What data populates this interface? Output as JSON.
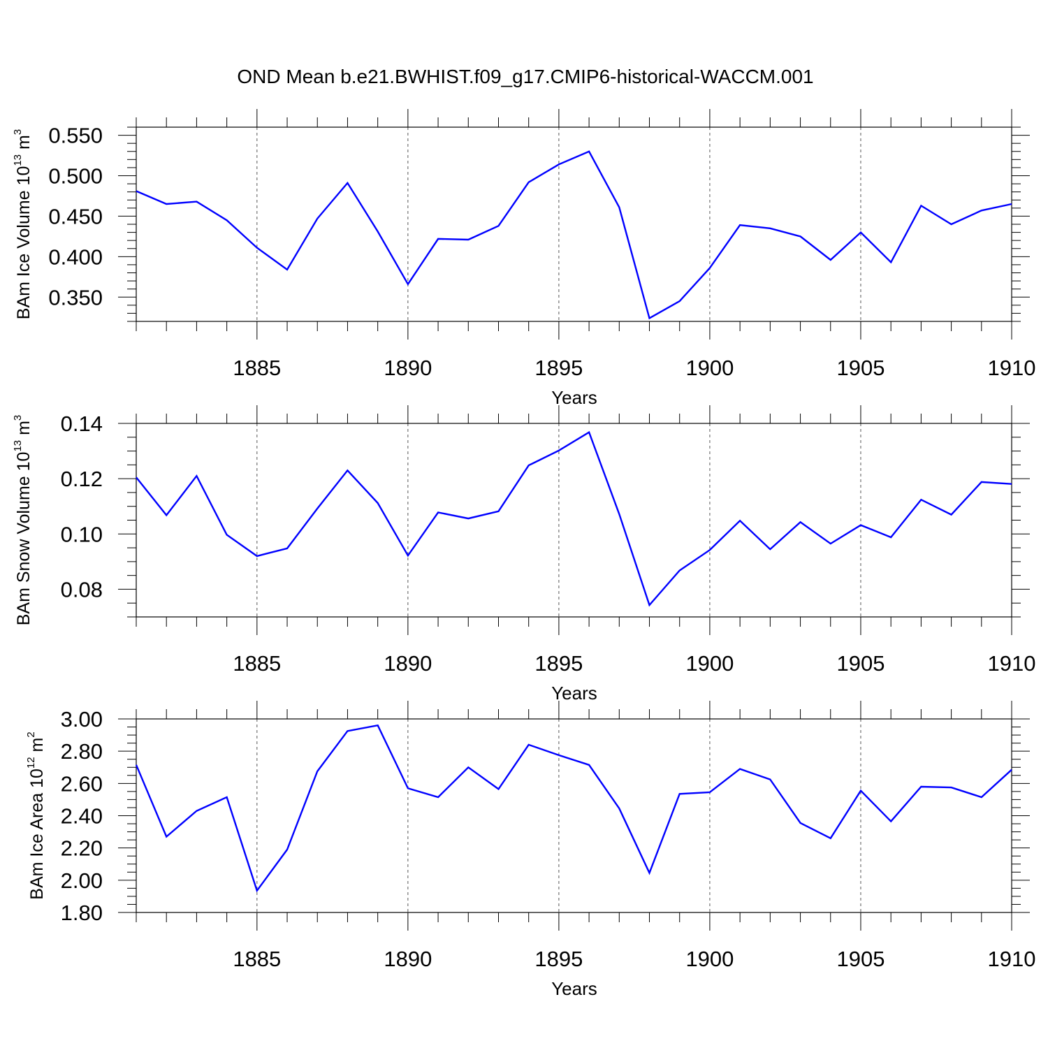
{
  "title": "OND Mean b.e21.BWHIST.f09_g17.CMIP6-historical-WACCM.001",
  "line_color": "#0000ff",
  "chart_data": [
    {
      "type": "line",
      "ylabel": {
        "text": "BAm Ice Volume 10",
        "sup": "13",
        "unit": " m",
        "unit_sup": "3"
      },
      "xlabel": "Years",
      "xlim": [
        1881,
        1910
      ],
      "ylim": [
        0.32,
        0.56
      ],
      "xticks": [
        1885,
        1890,
        1895,
        1900,
        1905,
        1910
      ],
      "xtick_labels": [
        "1885",
        "1890",
        "1895",
        "1900",
        "1905",
        "1910"
      ],
      "yticks": [
        0.35,
        0.4,
        0.45,
        0.5,
        0.55
      ],
      "ytick_labels": [
        "0.350",
        "0.400",
        "0.450",
        "0.500",
        "0.550"
      ],
      "y_minor_step": 0.01,
      "grid": "dashed vertical at major x ticks",
      "x": [
        1881,
        1882,
        1883,
        1884,
        1885,
        1886,
        1887,
        1888,
        1889,
        1890,
        1891,
        1892,
        1893,
        1894,
        1895,
        1896,
        1897,
        1898,
        1899,
        1900,
        1901,
        1902,
        1903,
        1904,
        1905,
        1906,
        1907,
        1908,
        1909,
        1910
      ],
      "values": [
        0.481,
        0.465,
        0.468,
        0.445,
        0.411,
        0.384,
        0.447,
        0.491,
        0.431,
        0.366,
        0.422,
        0.421,
        0.438,
        0.492,
        0.514,
        0.53,
        0.461,
        0.324,
        0.345,
        0.386,
        0.439,
        0.435,
        0.425,
        0.396,
        0.43,
        0.393,
        0.463,
        0.44,
        0.457,
        0.465
      ]
    },
    {
      "type": "line",
      "ylabel": {
        "text": "BAm Snow Volume 10",
        "sup": "13",
        "unit": " m",
        "unit_sup": "3"
      },
      "xlabel": "Years",
      "xlim": [
        1881,
        1910
      ],
      "ylim": [
        0.07,
        0.14
      ],
      "xticks": [
        1885,
        1890,
        1895,
        1900,
        1905,
        1910
      ],
      "xtick_labels": [
        "1885",
        "1890",
        "1895",
        "1900",
        "1905",
        "1910"
      ],
      "yticks": [
        0.08,
        0.1,
        0.12,
        0.14
      ],
      "ytick_labels": [
        "0.08",
        "0.10",
        "0.12",
        "0.14"
      ],
      "y_minor_step": 0.005,
      "grid": "dashed vertical at major x ticks",
      "x": [
        1881,
        1882,
        1883,
        1884,
        1885,
        1886,
        1887,
        1888,
        1889,
        1890,
        1891,
        1892,
        1893,
        1894,
        1895,
        1896,
        1897,
        1898,
        1899,
        1900,
        1901,
        1902,
        1903,
        1904,
        1905,
        1906,
        1907,
        1908,
        1909,
        1910
      ],
      "values": [
        0.1205,
        0.1068,
        0.121,
        0.0997,
        0.092,
        0.0948,
        0.1092,
        0.123,
        0.1112,
        0.0922,
        0.1078,
        0.1056,
        0.1082,
        0.1248,
        0.1302,
        0.1368,
        0.1072,
        0.0743,
        0.0868,
        0.0942,
        0.1048,
        0.0945,
        0.1043,
        0.0965,
        0.1032,
        0.0988,
        0.1124,
        0.107,
        0.1188,
        0.1181
      ]
    },
    {
      "type": "line",
      "ylabel": {
        "text": "BAm Ice Area 10",
        "sup": "12",
        "unit": " m",
        "unit_sup": "2"
      },
      "xlabel": "Years",
      "xlim": [
        1881,
        1910
      ],
      "ylim": [
        1.8,
        3.0
      ],
      "xticks": [
        1885,
        1890,
        1895,
        1900,
        1905,
        1910
      ],
      "xtick_labels": [
        "1885",
        "1890",
        "1895",
        "1900",
        "1905",
        "1910"
      ],
      "yticks": [
        1.8,
        2.0,
        2.2,
        2.4,
        2.6,
        2.8,
        3.0
      ],
      "ytick_labels": [
        "1.80",
        "2.00",
        "2.20",
        "2.40",
        "2.60",
        "2.80",
        "3.00"
      ],
      "y_minor_step": 0.05,
      "grid": "dashed vertical at major x ticks",
      "x": [
        1881,
        1882,
        1883,
        1884,
        1885,
        1886,
        1887,
        1888,
        1889,
        1890,
        1891,
        1892,
        1893,
        1894,
        1895,
        1896,
        1897,
        1898,
        1899,
        1900,
        1901,
        1902,
        1903,
        1904,
        1905,
        1906,
        1907,
        1908,
        1909,
        1910
      ],
      "values": [
        2.715,
        2.27,
        2.43,
        2.515,
        1.935,
        2.19,
        2.675,
        2.925,
        2.96,
        2.57,
        2.515,
        2.7,
        2.565,
        2.84,
        2.775,
        2.715,
        2.445,
        2.045,
        2.535,
        2.545,
        2.69,
        2.625,
        2.355,
        2.26,
        2.555,
        2.365,
        2.58,
        2.575,
        2.515,
        2.685
      ]
    }
  ]
}
